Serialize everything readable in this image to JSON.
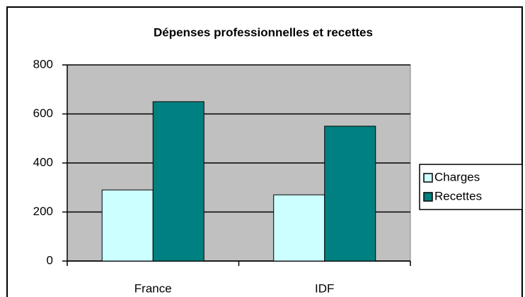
{
  "chart_data": {
    "type": "bar",
    "title": "Dépenses professionnelles et recettes",
    "categories": [
      "France",
      "IDF"
    ],
    "series": [
      {
        "name": "Charges",
        "color": "#ccffff",
        "values": [
          290,
          270
        ]
      },
      {
        "name": "Recettes",
        "color": "#008080",
        "values": [
          650,
          550
        ]
      }
    ],
    "ylim": [
      0,
      800
    ],
    "yticks": [
      0,
      200,
      400,
      600,
      800
    ],
    "grid": true,
    "legend": "right"
  }
}
